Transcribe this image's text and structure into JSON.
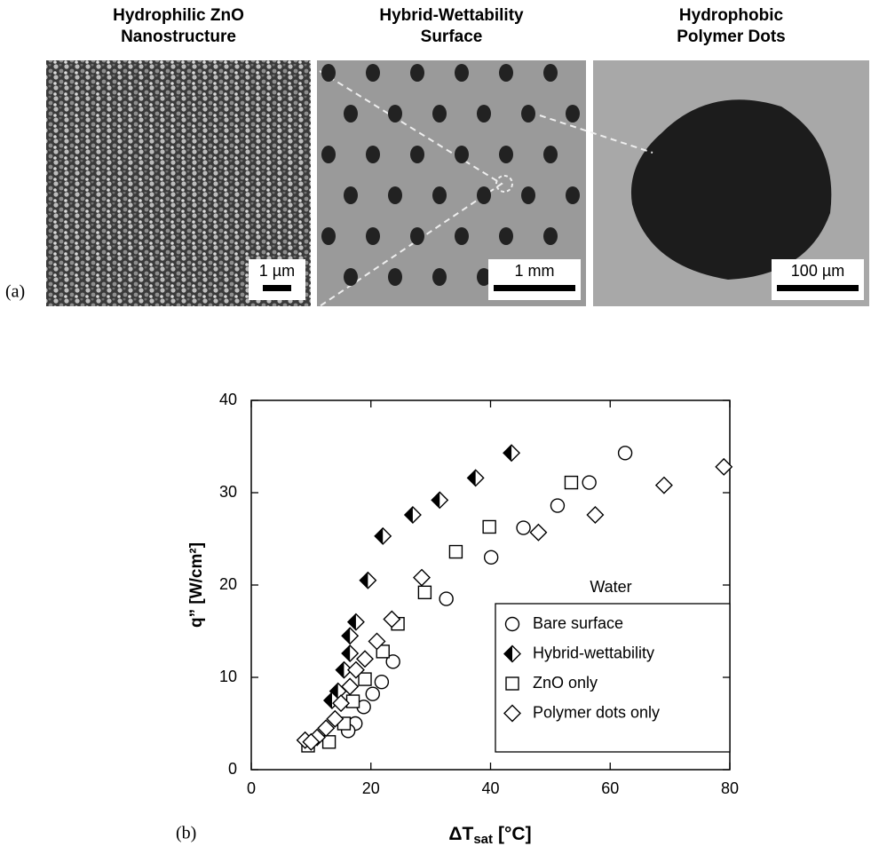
{
  "panel_a": {
    "label": "(a)",
    "images": [
      {
        "title": [
          "Hydrophilic ZnO",
          "Nanostructure"
        ],
        "scale": "1 µm"
      },
      {
        "title": [
          "Hybrid-Wettability",
          "Surface"
        ],
        "scale": "1 mm"
      },
      {
        "title": [
          "Hydrophobic",
          "Polymer Dots"
        ],
        "scale": "100 µm"
      }
    ]
  },
  "chart_data": {
    "type": "scatter",
    "panel_label": "(b)",
    "ylabel": "q” [W/cm²]",
    "xlabel": "ΔT",
    "xlabel_sub": "sat",
    "xlabel_unit": "[°C]",
    "xlim": [
      0,
      80
    ],
    "xticks": [
      0,
      20,
      40,
      60,
      80
    ],
    "ylim": [
      0,
      40
    ],
    "yticks": [
      0,
      10,
      20,
      30,
      40
    ],
    "legend_title": "Water",
    "legend": "lower right",
    "series": [
      {
        "name": "Bare surface",
        "marker": "circle",
        "color": "#000000",
        "x": [
          62.5,
          56.5,
          51.2,
          45.5,
          40.1,
          32.6,
          23.7,
          21.8,
          20.3,
          18.8,
          17.4,
          16.2
        ],
        "values": [
          34.3,
          31.1,
          28.6,
          26.2,
          23.0,
          18.5,
          11.7,
          9.5,
          8.2,
          6.8,
          5.0,
          4.2
        ]
      },
      {
        "name": "Hybrid-wettability",
        "marker": "half-diamond",
        "color": "#000000",
        "x": [
          43.5,
          37.5,
          31.5,
          27.0,
          22.0,
          19.5,
          17.5,
          16.5,
          16.5,
          15.5,
          14.5,
          13.5
        ],
        "values": [
          34.3,
          31.6,
          29.2,
          27.6,
          25.3,
          20.5,
          16.0,
          14.5,
          12.6,
          10.8,
          8.5,
          7.5
        ]
      },
      {
        "name": "ZnO only",
        "marker": "square",
        "color": "#000000",
        "x": [
          53.5,
          39.8,
          34.2,
          29.0,
          24.5,
          22.0,
          19.0,
          17.0,
          15.5,
          13.0,
          9.5
        ],
        "values": [
          31.1,
          26.3,
          23.6,
          19.2,
          15.8,
          12.8,
          9.8,
          7.4,
          5.0,
          3.0,
          2.6
        ]
      },
      {
        "name": "Polymer dots only",
        "marker": "diamond",
        "color": "#000000",
        "x": [
          79.0,
          69.0,
          57.5,
          48.0,
          28.5,
          23.5,
          21.0,
          19.0,
          17.5,
          16.5,
          15.0,
          14.0,
          12.5,
          11.0,
          9.0,
          10.0
        ],
        "values": [
          32.8,
          30.8,
          27.6,
          25.7,
          20.8,
          16.3,
          13.9,
          12.0,
          10.8,
          9.0,
          7.2,
          5.5,
          4.5,
          3.5,
          3.2,
          3.0
        ]
      }
    ]
  }
}
